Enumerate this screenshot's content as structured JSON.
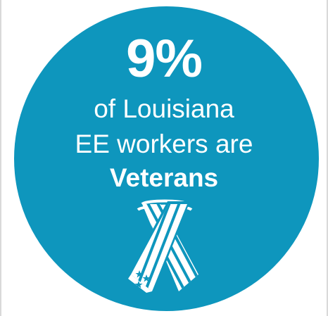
{
  "infographic": {
    "stat_value": "9%",
    "line1": "of Louisiana",
    "line2": "EE workers are",
    "line3": "Veterans",
    "icon": "veterans-ribbon-icon",
    "colors": {
      "circle": "#0e96bd",
      "text": "#ffffff",
      "background": "#ffffff"
    }
  }
}
